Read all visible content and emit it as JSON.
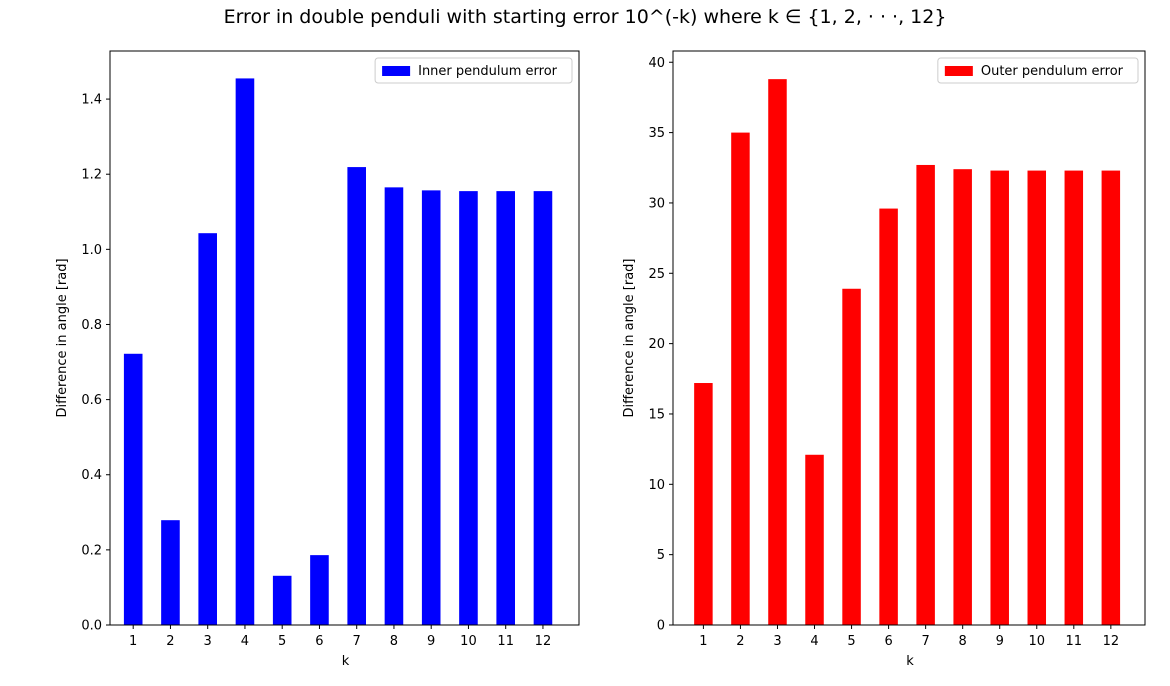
{
  "figure": {
    "title": "Error in double penduli with starting error 10^(-k) where k ∈ {1, 2, · · ·, 12}"
  },
  "chart_data": [
    {
      "type": "bar",
      "categories": [
        "1",
        "2",
        "3",
        "4",
        "5",
        "6",
        "7",
        "8",
        "9",
        "10",
        "11",
        "12"
      ],
      "series": [
        {
          "name": "Inner pendulum error",
          "values": [
            0.722,
            0.279,
            1.043,
            1.455,
            0.131,
            0.186,
            1.219,
            1.165,
            1.157,
            1.155,
            1.155,
            1.155
          ]
        }
      ],
      "color": "#0000ff",
      "xlabel": "k",
      "ylabel": "Difference in angle [rad]",
      "ylim": [
        0,
        1.528
      ],
      "yticks": [
        0.0,
        0.2,
        0.4,
        0.6,
        0.8,
        1.0,
        1.2,
        1.4
      ],
      "ytick_labels": [
        "0.0",
        "0.2",
        "0.4",
        "0.6",
        "0.8",
        "1.0",
        "1.2",
        "1.4"
      ],
      "legend_position": "top-right",
      "grid": false
    },
    {
      "type": "bar",
      "categories": [
        "1",
        "2",
        "3",
        "4",
        "5",
        "6",
        "7",
        "8",
        "9",
        "10",
        "11",
        "12"
      ],
      "series": [
        {
          "name": "Outer pendulum error",
          "values": [
            17.2,
            35.0,
            38.8,
            12.1,
            23.9,
            29.6,
            32.7,
            32.4,
            32.3,
            32.3,
            32.3,
            32.3
          ]
        }
      ],
      "color": "#ff0000",
      "xlabel": "k",
      "ylabel": "Difference in angle [rad]",
      "ylim": [
        0,
        40.8
      ],
      "yticks": [
        0,
        5,
        10,
        15,
        20,
        25,
        30,
        35,
        40
      ],
      "ytick_labels": [
        "0",
        "5",
        "10",
        "15",
        "20",
        "25",
        "30",
        "35",
        "40"
      ],
      "legend_position": "top-right",
      "grid": false
    }
  ]
}
